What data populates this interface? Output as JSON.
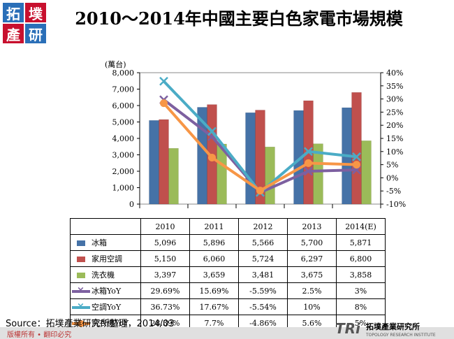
{
  "logo": {
    "chars": [
      "拓",
      "墣",
      "產",
      "研"
    ],
    "name": "logo-stamp"
  },
  "title": "2010～2014年中國主要白色家電市場規模",
  "yunit": "(萬台)",
  "chart_data": {
    "type": "bar",
    "title": "2010～2014年中國主要白色家電市場規模",
    "ylabel": "(萬台)",
    "ylim": [
      0,
      8000
    ],
    "y2lim": [
      -10,
      40
    ],
    "yticks": [
      "0",
      "1,000",
      "2,000",
      "3,000",
      "4,000",
      "5,000",
      "6,000",
      "7,000",
      "8,000"
    ],
    "y2ticks": [
      "-10%",
      "-5%",
      "0%",
      "5%",
      "10%",
      "15%",
      "20%",
      "25%",
      "30%",
      "35%",
      "40%"
    ],
    "categories": [
      "2010",
      "2011",
      "2012",
      "2013",
      "2014(E)"
    ],
    "series": [
      {
        "name": "冰箱",
        "kind": "bar",
        "color": "#4572a7",
        "values": [
          5096,
          5896,
          5566,
          5700,
          5871
        ],
        "labels": [
          "5,096",
          "5,896",
          "5,566",
          "5,700",
          "5,871"
        ]
      },
      {
        "name": "家用空調",
        "kind": "bar",
        "color": "#c0504d",
        "values": [
          5150,
          6060,
          5724,
          6297,
          6800
        ],
        "labels": [
          "5,150",
          "6,060",
          "5,724",
          "6,297",
          "6,800"
        ]
      },
      {
        "name": "洗衣機",
        "kind": "bar",
        "color": "#9bbb59",
        "values": [
          3397,
          3659,
          3481,
          3675,
          3858
        ],
        "labels": [
          "3,397",
          "3,659",
          "3,481",
          "3,675",
          "3,858"
        ]
      },
      {
        "name": "冰箱YoY",
        "kind": "line",
        "color": "#7d60a0",
        "marker": "x",
        "values": [
          29.69,
          15.69,
          -5.59,
          2.5,
          3
        ],
        "labels": [
          "29.69%",
          "15.69%",
          "-5.59%",
          "2.5%",
          "3%"
        ]
      },
      {
        "name": "空調YoY",
        "kind": "line",
        "color": "#4bacc6",
        "marker": "x",
        "values": [
          36.73,
          17.67,
          -5.54,
          10,
          8
        ],
        "labels": [
          "36.73%",
          "17.67%",
          "-5.54%",
          "10%",
          "8%"
        ]
      },
      {
        "name": "洗衣機YoY",
        "kind": "line",
        "color": "#f79646",
        "marker": "circle",
        "values": [
          28.39,
          7.7,
          -4.86,
          5.6,
          5
        ],
        "labels": [
          "28.39%",
          "7.7%",
          "-4.86%",
          "5.6%",
          "5%"
        ]
      }
    ],
    "grid": false,
    "legend": "table"
  },
  "source": "Source：拓墣產業研究所整理，2014/03",
  "copyright": "版權所有 • 翻印必究",
  "brand": {
    "mark": "TRi",
    "name": "拓墣產業研究所",
    "sub": "TOPOLOGY RESEARCH INSTITUTE"
  }
}
